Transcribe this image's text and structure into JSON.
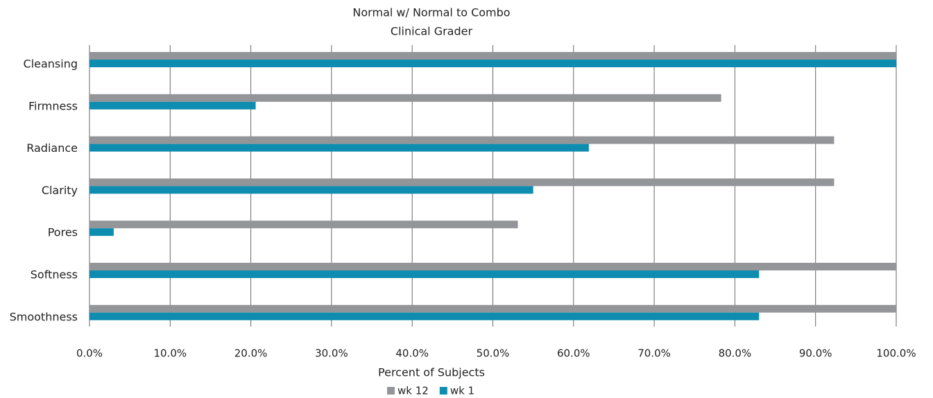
{
  "chart_data": {
    "type": "hbar",
    "title": "Normal w/ Normal to Combo",
    "subtitle": "Clinical Grader",
    "x_label": "Percent of Subjects",
    "categories": [
      "Cleansing",
      "Firmness",
      "Radiance",
      "Clarity",
      "Pores",
      "Softness",
      "Smoothness"
    ],
    "series": [
      {
        "name": "wk 12",
        "color": "#939598",
        "values": [
          100,
          78.3,
          92.3,
          92.3,
          53.1,
          100,
          100
        ]
      },
      {
        "name": "wk 1",
        "color": "#0e8db0",
        "values": [
          100,
          20.6,
          61.9,
          55.0,
          3.0,
          83.0,
          83.0
        ]
      }
    ],
    "xlim": [
      0,
      100
    ],
    "xticks": [
      {
        "value": 0,
        "label": "0.0%"
      },
      {
        "value": 10,
        "label": "10.0%"
      },
      {
        "value": 20,
        "label": "20.0%"
      },
      {
        "value": 30,
        "label": "30.0%"
      },
      {
        "value": 40,
        "label": "40.0%"
      },
      {
        "value": 50,
        "label": "50.0%"
      },
      {
        "value": 60,
        "label": "60.0%"
      },
      {
        "value": 70,
        "label": "70.0%"
      },
      {
        "value": 80,
        "label": "80.0%"
      },
      {
        "value": 90,
        "label": "90.0%"
      },
      {
        "value": 100,
        "label": "100.0%"
      }
    ],
    "grid": true,
    "legend": "bottom"
  }
}
